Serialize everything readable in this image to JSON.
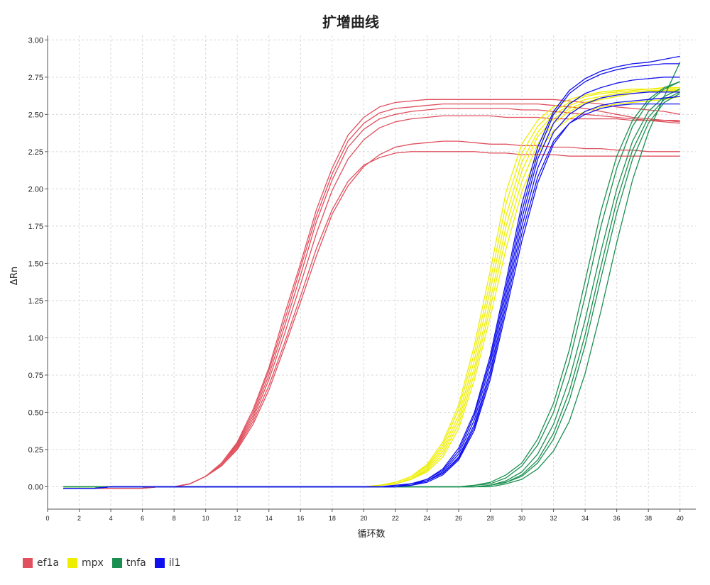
{
  "chart_data": {
    "type": "line",
    "title": "扩增曲线",
    "xlabel": "循环数",
    "ylabel": "ΔRn",
    "xlim": [
      0,
      41
    ],
    "ylim": [
      -0.15,
      3.03
    ],
    "x_ticks": [
      "0",
      "2",
      "4",
      "6",
      "8",
      "10",
      "12",
      "14",
      "16",
      "18",
      "20",
      "22",
      "24",
      "26",
      "28",
      "30",
      "32",
      "34",
      "36",
      "38",
      "40"
    ],
    "y_ticks": [
      "0.00",
      "0.25",
      "0.50",
      "0.75",
      "1.00",
      "1.25",
      "1.50",
      "1.75",
      "2.00",
      "2.25",
      "2.50",
      "2.75",
      "3.00"
    ],
    "grid": true,
    "legend_position": "bottom-left",
    "x": [
      1,
      2,
      3,
      4,
      5,
      6,
      7,
      8,
      9,
      10,
      11,
      12,
      13,
      14,
      15,
      16,
      17,
      18,
      19,
      20,
      21,
      22,
      23,
      24,
      25,
      26,
      27,
      28,
      29,
      30,
      31,
      32,
      33,
      34,
      35,
      36,
      37,
      38,
      39,
      40
    ],
    "series": [
      {
        "name": "ef1a",
        "color": "#e0505e",
        "lines": [
          [
            -0.01,
            -0.01,
            -0.01,
            -0.01,
            -0.01,
            -0.01,
            0,
            0,
            0.02,
            0.07,
            0.16,
            0.3,
            0.52,
            0.8,
            1.16,
            1.5,
            1.86,
            2.14,
            2.36,
            2.48,
            2.55,
            2.58,
            2.59,
            2.6,
            2.6,
            2.6,
            2.6,
            2.6,
            2.6,
            2.6,
            2.6,
            2.6,
            2.59,
            2.58,
            2.57,
            2.55,
            2.54,
            2.53,
            2.52,
            2.5
          ],
          [
            -0.01,
            -0.01,
            -0.01,
            -0.01,
            -0.01,
            -0.01,
            0,
            0,
            0.02,
            0.07,
            0.15,
            0.29,
            0.5,
            0.78,
            1.12,
            1.47,
            1.82,
            2.1,
            2.32,
            2.44,
            2.51,
            2.54,
            2.55,
            2.56,
            2.57,
            2.57,
            2.57,
            2.57,
            2.57,
            2.57,
            2.57,
            2.56,
            2.55,
            2.54,
            2.52,
            2.5,
            2.48,
            2.47,
            2.46,
            2.45
          ],
          [
            -0.01,
            -0.01,
            -0.01,
            -0.01,
            -0.01,
            -0.01,
            0,
            0,
            0.02,
            0.07,
            0.15,
            0.28,
            0.48,
            0.75,
            1.08,
            1.42,
            1.78,
            2.06,
            2.28,
            2.4,
            2.47,
            2.5,
            2.52,
            2.53,
            2.54,
            2.54,
            2.54,
            2.54,
            2.54,
            2.53,
            2.53,
            2.52,
            2.51,
            2.5,
            2.49,
            2.48,
            2.47,
            2.46,
            2.45,
            2.44
          ],
          [
            -0.01,
            -0.01,
            -0.01,
            -0.01,
            -0.01,
            -0.01,
            0,
            0,
            0.02,
            0.07,
            0.15,
            0.27,
            0.46,
            0.72,
            1.03,
            1.36,
            1.7,
            1.99,
            2.2,
            2.33,
            2.41,
            2.45,
            2.47,
            2.48,
            2.49,
            2.49,
            2.49,
            2.49,
            2.48,
            2.48,
            2.48,
            2.47,
            2.47,
            2.47,
            2.47,
            2.47,
            2.46,
            2.46,
            2.46,
            2.46
          ],
          [
            -0.01,
            -0.01,
            -0.01,
            -0.01,
            -0.01,
            -0.01,
            0,
            0,
            0.02,
            0.07,
            0.14,
            0.26,
            0.44,
            0.68,
            0.97,
            1.28,
            1.6,
            1.86,
            2.05,
            2.16,
            2.21,
            2.24,
            2.25,
            2.25,
            2.25,
            2.25,
            2.25,
            2.24,
            2.24,
            2.23,
            2.23,
            2.23,
            2.22,
            2.22,
            2.22,
            2.22,
            2.22,
            2.22,
            2.22,
            2.22
          ],
          [
            -0.01,
            -0.01,
            -0.01,
            -0.01,
            -0.01,
            -0.01,
            0,
            0,
            0.02,
            0.07,
            0.14,
            0.25,
            0.42,
            0.65,
            0.94,
            1.24,
            1.55,
            1.83,
            2.02,
            2.15,
            2.23,
            2.28,
            2.3,
            2.31,
            2.32,
            2.32,
            2.31,
            2.3,
            2.3,
            2.29,
            2.29,
            2.28,
            2.28,
            2.27,
            2.27,
            2.26,
            2.26,
            2.25,
            2.25,
            2.25
          ]
        ]
      },
      {
        "name": "mpx",
        "color": "#eeee00",
        "lines": [
          [
            0,
            0,
            0,
            0,
            0,
            0,
            0,
            0,
            0,
            0,
            0,
            0,
            0,
            0,
            0,
            0,
            0,
            0,
            0,
            0,
            0.01,
            0.03,
            0.07,
            0.15,
            0.3,
            0.55,
            0.95,
            1.45,
            1.98,
            2.3,
            2.46,
            2.55,
            2.6,
            2.63,
            2.65,
            2.66,
            2.67,
            2.67,
            2.68,
            2.68
          ],
          [
            0,
            0,
            0,
            0,
            0,
            0,
            0,
            0,
            0,
            0,
            0,
            0,
            0,
            0,
            0,
            0,
            0,
            0,
            0,
            0,
            0.01,
            0.03,
            0.07,
            0.14,
            0.28,
            0.52,
            0.9,
            1.38,
            1.9,
            2.24,
            2.42,
            2.52,
            2.58,
            2.62,
            2.64,
            2.65,
            2.66,
            2.67,
            2.67,
            2.68
          ],
          [
            0,
            0,
            0,
            0,
            0,
            0,
            0,
            0,
            0,
            0,
            0,
            0,
            0,
            0,
            0,
            0,
            0,
            0,
            0,
            0,
            0.01,
            0.02,
            0.06,
            0.13,
            0.26,
            0.48,
            0.85,
            1.32,
            1.82,
            2.18,
            2.38,
            2.5,
            2.56,
            2.6,
            2.62,
            2.64,
            2.65,
            2.66,
            2.66,
            2.67
          ],
          [
            0,
            0,
            0,
            0,
            0,
            0,
            0,
            0,
            0,
            0,
            0,
            0,
            0,
            0,
            0,
            0,
            0,
            0,
            0,
            0,
            0.01,
            0.02,
            0.05,
            0.12,
            0.24,
            0.45,
            0.8,
            1.25,
            1.75,
            2.12,
            2.35,
            2.47,
            2.54,
            2.58,
            2.61,
            2.63,
            2.64,
            2.65,
            2.66,
            2.66
          ],
          [
            0,
            0,
            0,
            0,
            0,
            0,
            0,
            0,
            0,
            0,
            0,
            0,
            0,
            0,
            0,
            0,
            0,
            0,
            0,
            0,
            0.01,
            0.02,
            0.05,
            0.11,
            0.22,
            0.42,
            0.76,
            1.2,
            1.68,
            2.05,
            2.3,
            2.44,
            2.52,
            2.57,
            2.6,
            2.62,
            2.64,
            2.65,
            2.65,
            2.66
          ],
          [
            0,
            0,
            0,
            0,
            0,
            0,
            0,
            0,
            0,
            0,
            0,
            0,
            0,
            0,
            0,
            0,
            0,
            0,
            0,
            0,
            0.01,
            0.02,
            0.05,
            0.1,
            0.2,
            0.39,
            0.72,
            1.14,
            1.6,
            1.98,
            2.24,
            2.39,
            2.47,
            2.52,
            2.55,
            2.57,
            2.58,
            2.59,
            2.6,
            2.62
          ]
        ]
      },
      {
        "name": "tnfa",
        "color": "#1a8f50",
        "lines": [
          [
            0,
            0,
            0,
            0,
            0,
            0,
            0,
            0,
            0,
            0,
            0,
            0,
            0,
            0,
            0,
            0,
            0,
            0,
            0,
            0,
            0,
            0,
            0,
            0,
            0,
            0,
            0.01,
            0.03,
            0.08,
            0.16,
            0.32,
            0.56,
            0.92,
            1.38,
            1.85,
            2.22,
            2.46,
            2.6,
            2.68,
            2.72
          ],
          [
            0,
            0,
            0,
            0,
            0,
            0,
            0,
            0,
            0,
            0,
            0,
            0,
            0,
            0,
            0,
            0,
            0,
            0,
            0,
            0,
            0,
            0,
            0,
            0,
            0,
            0,
            0.01,
            0.02,
            0.06,
            0.14,
            0.28,
            0.5,
            0.84,
            1.28,
            1.75,
            2.14,
            2.42,
            2.58,
            2.67,
            2.72
          ],
          [
            0,
            0,
            0,
            0,
            0,
            0,
            0,
            0,
            0,
            0,
            0,
            0,
            0,
            0,
            0,
            0,
            0,
            0,
            0,
            0,
            0,
            0,
            0,
            0,
            0,
            0,
            0,
            0.01,
            0.04,
            0.1,
            0.22,
            0.42,
            0.72,
            1.12,
            1.58,
            2.0,
            2.32,
            2.52,
            2.62,
            2.67
          ],
          [
            0,
            0,
            0,
            0,
            0,
            0,
            0,
            0,
            0,
            0,
            0,
            0,
            0,
            0,
            0,
            0,
            0,
            0,
            0,
            0,
            0,
            0,
            0,
            0,
            0,
            0,
            0,
            0.01,
            0.03,
            0.08,
            0.18,
            0.36,
            0.64,
            1.02,
            1.48,
            1.92,
            2.26,
            2.48,
            2.6,
            2.65
          ],
          [
            0,
            0,
            0,
            0,
            0,
            0,
            0,
            0,
            0,
            0,
            0,
            0,
            0,
            0,
            0,
            0,
            0,
            0,
            0,
            0,
            0,
            0,
            0,
            0,
            0,
            0,
            0,
            0.01,
            0.03,
            0.07,
            0.16,
            0.32,
            0.58,
            0.95,
            1.4,
            1.84,
            2.2,
            2.44,
            2.58,
            2.64
          ],
          [
            0,
            0,
            0,
            0,
            0,
            0,
            0,
            0,
            0,
            0,
            0,
            0,
            0,
            0,
            0,
            0,
            0,
            0,
            0,
            0,
            0,
            0,
            0,
            0,
            0,
            0,
            0,
            0,
            0.02,
            0.05,
            0.12,
            0.24,
            0.44,
            0.76,
            1.18,
            1.64,
            2.06,
            2.38,
            2.62,
            2.85
          ]
        ]
      },
      {
        "name": "il1",
        "color": "#1010ee",
        "lines": [
          [
            -0.01,
            -0.01,
            -0.01,
            0,
            0,
            0,
            0,
            0,
            0,
            0,
            0,
            0,
            0,
            0,
            0,
            0,
            0,
            0,
            0,
            0,
            0,
            0.01,
            0.02,
            0.05,
            0.12,
            0.26,
            0.5,
            0.88,
            1.38,
            1.9,
            2.28,
            2.52,
            2.66,
            2.74,
            2.79,
            2.82,
            2.84,
            2.85,
            2.87,
            2.89
          ],
          [
            -0.01,
            -0.01,
            -0.01,
            0,
            0,
            0,
            0,
            0,
            0,
            0,
            0,
            0,
            0,
            0,
            0,
            0,
            0,
            0,
            0,
            0,
            0,
            0.01,
            0.02,
            0.05,
            0.11,
            0.24,
            0.48,
            0.85,
            1.34,
            1.85,
            2.24,
            2.5,
            2.64,
            2.72,
            2.77,
            2.8,
            2.82,
            2.83,
            2.84,
            2.84
          ],
          [
            -0.01,
            -0.01,
            -0.01,
            0,
            0,
            0,
            0,
            0,
            0,
            0,
            0,
            0,
            0,
            0,
            0,
            0,
            0,
            0,
            0,
            0,
            0,
            0,
            0.02,
            0.04,
            0.1,
            0.22,
            0.45,
            0.82,
            1.3,
            1.8,
            2.2,
            2.44,
            2.57,
            2.64,
            2.68,
            2.71,
            2.73,
            2.74,
            2.75,
            2.75
          ],
          [
            -0.01,
            -0.01,
            -0.01,
            0,
            0,
            0,
            0,
            0,
            0,
            0,
            0,
            0,
            0,
            0,
            0,
            0,
            0,
            0,
            0,
            0,
            0,
            0,
            0.02,
            0.04,
            0.09,
            0.2,
            0.42,
            0.78,
            1.26,
            1.75,
            2.14,
            2.38,
            2.5,
            2.57,
            2.61,
            2.63,
            2.64,
            2.65,
            2.65,
            2.65
          ],
          [
            -0.01,
            -0.01,
            -0.01,
            0,
            0,
            0,
            0,
            0,
            0,
            0,
            0,
            0,
            0,
            0,
            0,
            0,
            0,
            0,
            0,
            0,
            0,
            0,
            0.01,
            0.04,
            0.09,
            0.19,
            0.4,
            0.75,
            1.22,
            1.7,
            2.08,
            2.32,
            2.44,
            2.5,
            2.54,
            2.56,
            2.57,
            2.57,
            2.57,
            2.57
          ],
          [
            -0.01,
            -0.01,
            -0.01,
            0,
            0,
            0,
            0,
            0,
            0,
            0,
            0,
            0,
            0,
            0,
            0,
            0,
            0,
            0,
            0,
            0,
            0,
            0,
            0.01,
            0.03,
            0.08,
            0.18,
            0.38,
            0.72,
            1.18,
            1.65,
            2.04,
            2.3,
            2.44,
            2.52,
            2.56,
            2.58,
            2.59,
            2.6,
            2.61,
            2.62
          ]
        ]
      }
    ]
  }
}
